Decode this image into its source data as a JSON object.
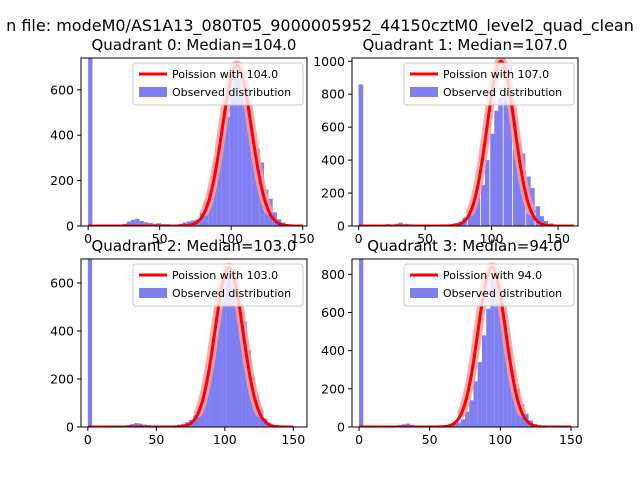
{
  "figure": {
    "suptitle": "n file: modeM0/AS1A13_080T05_9000005952_44150cztM0_level2_quad_clean"
  },
  "colors": {
    "hist": "#7f7ff2",
    "fit": "#ff0000",
    "fit_fill": "#f4a0a0",
    "axis": "#000000",
    "legend_border": "#cccccc"
  },
  "chart_data": [
    {
      "type": "bar",
      "title": "Quadrant 0: Median=104.0",
      "xlim": [
        -5,
        153
      ],
      "ylim": [
        0,
        740
      ],
      "xticks": [
        0,
        50,
        100,
        150
      ],
      "yticks": [
        0,
        200,
        400,
        600
      ],
      "legend": {
        "position": "top-right",
        "fit_label": "Poission with 104.0",
        "hist_label": "Observed distribution"
      },
      "bin_width": 3,
      "histogram": [
        {
          "x": 0,
          "y": 740
        },
        {
          "x": 3,
          "y": 0
        },
        {
          "x": 6,
          "y": 0
        },
        {
          "x": 9,
          "y": 0
        },
        {
          "x": 12,
          "y": 0
        },
        {
          "x": 15,
          "y": 0
        },
        {
          "x": 18,
          "y": 0
        },
        {
          "x": 21,
          "y": 0
        },
        {
          "x": 24,
          "y": 10
        },
        {
          "x": 27,
          "y": 20
        },
        {
          "x": 30,
          "y": 28
        },
        {
          "x": 33,
          "y": 32
        },
        {
          "x": 36,
          "y": 22
        },
        {
          "x": 39,
          "y": 16
        },
        {
          "x": 42,
          "y": 14
        },
        {
          "x": 45,
          "y": 10
        },
        {
          "x": 48,
          "y": 12
        },
        {
          "x": 51,
          "y": 8
        },
        {
          "x": 54,
          "y": 8
        },
        {
          "x": 57,
          "y": 6
        },
        {
          "x": 60,
          "y": 4
        },
        {
          "x": 63,
          "y": 10
        },
        {
          "x": 66,
          "y": 16
        },
        {
          "x": 69,
          "y": 20
        },
        {
          "x": 72,
          "y": 25
        },
        {
          "x": 75,
          "y": 30
        },
        {
          "x": 78,
          "y": 58
        },
        {
          "x": 81,
          "y": 110
        },
        {
          "x": 84,
          "y": 160
        },
        {
          "x": 87,
          "y": 280
        },
        {
          "x": 90,
          "y": 350
        },
        {
          "x": 93,
          "y": 420
        },
        {
          "x": 96,
          "y": 480
        },
        {
          "x": 99,
          "y": 570
        },
        {
          "x": 102,
          "y": 650
        },
        {
          "x": 105,
          "y": 700
        },
        {
          "x": 108,
          "y": 690
        },
        {
          "x": 111,
          "y": 560
        },
        {
          "x": 114,
          "y": 380
        },
        {
          "x": 117,
          "y": 340
        },
        {
          "x": 120,
          "y": 280
        },
        {
          "x": 123,
          "y": 160
        },
        {
          "x": 126,
          "y": 120
        },
        {
          "x": 129,
          "y": 60
        },
        {
          "x": 132,
          "y": 30
        },
        {
          "x": 135,
          "y": 15
        },
        {
          "x": 138,
          "y": 5
        },
        {
          "x": 141,
          "y": 2
        }
      ],
      "fit": {
        "mean": 104.0,
        "scale": 709,
        "xrange": [
          0,
          150
        ]
      }
    },
    {
      "type": "bar",
      "title": "Quadrant 1: Median=107.0",
      "xlim": [
        -5,
        165
      ],
      "ylim": [
        0,
        1020
      ],
      "xticks": [
        0,
        50,
        100,
        150
      ],
      "yticks": [
        0,
        200,
        400,
        600,
        800,
        1000
      ],
      "legend": {
        "position": "top-right",
        "fit_label": "Poission with 107.0",
        "hist_label": "Observed distribution"
      },
      "bin_width": 3.4,
      "histogram": [
        {
          "x": 0,
          "y": 860
        },
        {
          "x": 10,
          "y": 0
        },
        {
          "x": 17,
          "y": 8
        },
        {
          "x": 20,
          "y": 12
        },
        {
          "x": 24,
          "y": 10
        },
        {
          "x": 27,
          "y": 14
        },
        {
          "x": 30,
          "y": 20
        },
        {
          "x": 34,
          "y": 14
        },
        {
          "x": 37,
          "y": 10
        },
        {
          "x": 41,
          "y": 8
        },
        {
          "x": 44,
          "y": 6
        },
        {
          "x": 48,
          "y": 4
        },
        {
          "x": 58,
          "y": 6
        },
        {
          "x": 61,
          "y": 10
        },
        {
          "x": 65,
          "y": 8
        },
        {
          "x": 68,
          "y": 12
        },
        {
          "x": 71,
          "y": 18
        },
        {
          "x": 75,
          "y": 26
        },
        {
          "x": 78,
          "y": 50
        },
        {
          "x": 82,
          "y": 90
        },
        {
          "x": 85,
          "y": 120
        },
        {
          "x": 88,
          "y": 200
        },
        {
          "x": 92,
          "y": 250
        },
        {
          "x": 95,
          "y": 400
        },
        {
          "x": 99,
          "y": 560
        },
        {
          "x": 102,
          "y": 700
        },
        {
          "x": 105,
          "y": 780
        },
        {
          "x": 109,
          "y": 860
        },
        {
          "x": 112,
          "y": 980
        },
        {
          "x": 116,
          "y": 640
        },
        {
          "x": 119,
          "y": 500
        },
        {
          "x": 122,
          "y": 440
        },
        {
          "x": 126,
          "y": 300
        },
        {
          "x": 129,
          "y": 230
        },
        {
          "x": 133,
          "y": 120
        },
        {
          "x": 136,
          "y": 60
        },
        {
          "x": 139,
          "y": 30
        },
        {
          "x": 143,
          "y": 15
        },
        {
          "x": 146,
          "y": 6
        }
      ],
      "fit": {
        "mean": 107.0,
        "scale": 1000,
        "xrange": [
          0,
          162
        ]
      }
    },
    {
      "type": "bar",
      "title": "Quadrant 2: Median=103.0",
      "xlim": [
        -5,
        160
      ],
      "ylim": [
        0,
        700
      ],
      "xticks": [
        0,
        50,
        100,
        150
      ],
      "yticks": [
        0,
        200,
        400,
        600
      ],
      "legend": {
        "position": "top-right",
        "fit_label": "Poission with 103.0",
        "hist_label": "Observed distribution"
      },
      "bin_width": 3.1,
      "histogram": [
        {
          "x": 0,
          "y": 700
        },
        {
          "x": 25,
          "y": 5
        },
        {
          "x": 28,
          "y": 8
        },
        {
          "x": 31,
          "y": 12
        },
        {
          "x": 34,
          "y": 16
        },
        {
          "x": 37,
          "y": 14
        },
        {
          "x": 40,
          "y": 10
        },
        {
          "x": 43,
          "y": 8
        },
        {
          "x": 46,
          "y": 6
        },
        {
          "x": 56,
          "y": 4
        },
        {
          "x": 62,
          "y": 6
        },
        {
          "x": 65,
          "y": 10
        },
        {
          "x": 68,
          "y": 14
        },
        {
          "x": 71,
          "y": 20
        },
        {
          "x": 74,
          "y": 30
        },
        {
          "x": 77,
          "y": 50
        },
        {
          "x": 80,
          "y": 80
        },
        {
          "x": 83,
          "y": 120
        },
        {
          "x": 86,
          "y": 200
        },
        {
          "x": 89,
          "y": 300
        },
        {
          "x": 92,
          "y": 380
        },
        {
          "x": 95,
          "y": 490
        },
        {
          "x": 98,
          "y": 560
        },
        {
          "x": 101,
          "y": 650
        },
        {
          "x": 104,
          "y": 660
        },
        {
          "x": 107,
          "y": 630
        },
        {
          "x": 110,
          "y": 560
        },
        {
          "x": 113,
          "y": 440
        },
        {
          "x": 116,
          "y": 320
        },
        {
          "x": 119,
          "y": 210
        },
        {
          "x": 122,
          "y": 130
        },
        {
          "x": 125,
          "y": 70
        },
        {
          "x": 128,
          "y": 35
        },
        {
          "x": 131,
          "y": 15
        },
        {
          "x": 134,
          "y": 6
        }
      ],
      "fit": {
        "mean": 103.0,
        "scale": 665,
        "xrange": [
          0,
          150
        ]
      }
    },
    {
      "type": "bar",
      "title": "Quadrant 3: Median=94.0",
      "xlim": [
        -5,
        155
      ],
      "ylim": [
        0,
        880
      ],
      "xticks": [
        0,
        50,
        100,
        150
      ],
      "yticks": [
        0,
        200,
        400,
        600,
        800
      ],
      "legend": {
        "position": "top-right",
        "fit_label": "Poission with 94.0",
        "hist_label": "Observed distribution"
      },
      "bin_width": 3.0,
      "histogram": [
        {
          "x": 0,
          "y": 880
        },
        {
          "x": 24,
          "y": 6
        },
        {
          "x": 27,
          "y": 10
        },
        {
          "x": 30,
          "y": 14
        },
        {
          "x": 33,
          "y": 18
        },
        {
          "x": 36,
          "y": 12
        },
        {
          "x": 39,
          "y": 8
        },
        {
          "x": 42,
          "y": 6
        },
        {
          "x": 45,
          "y": 4
        },
        {
          "x": 57,
          "y": 6
        },
        {
          "x": 60,
          "y": 8
        },
        {
          "x": 63,
          "y": 10
        },
        {
          "x": 66,
          "y": 16
        },
        {
          "x": 69,
          "y": 24
        },
        {
          "x": 72,
          "y": 40
        },
        {
          "x": 75,
          "y": 80
        },
        {
          "x": 78,
          "y": 140
        },
        {
          "x": 81,
          "y": 240
        },
        {
          "x": 84,
          "y": 340
        },
        {
          "x": 87,
          "y": 480
        },
        {
          "x": 90,
          "y": 620
        },
        {
          "x": 93,
          "y": 780
        },
        {
          "x": 96,
          "y": 820
        },
        {
          "x": 99,
          "y": 730
        },
        {
          "x": 102,
          "y": 560
        },
        {
          "x": 105,
          "y": 420
        },
        {
          "x": 108,
          "y": 300
        },
        {
          "x": 111,
          "y": 200
        },
        {
          "x": 114,
          "y": 120
        },
        {
          "x": 117,
          "y": 70
        },
        {
          "x": 120,
          "y": 35
        },
        {
          "x": 123,
          "y": 15
        },
        {
          "x": 126,
          "y": 6
        }
      ],
      "fit": {
        "mean": 94.0,
        "scale": 838,
        "xrange": [
          0,
          150
        ]
      }
    }
  ]
}
